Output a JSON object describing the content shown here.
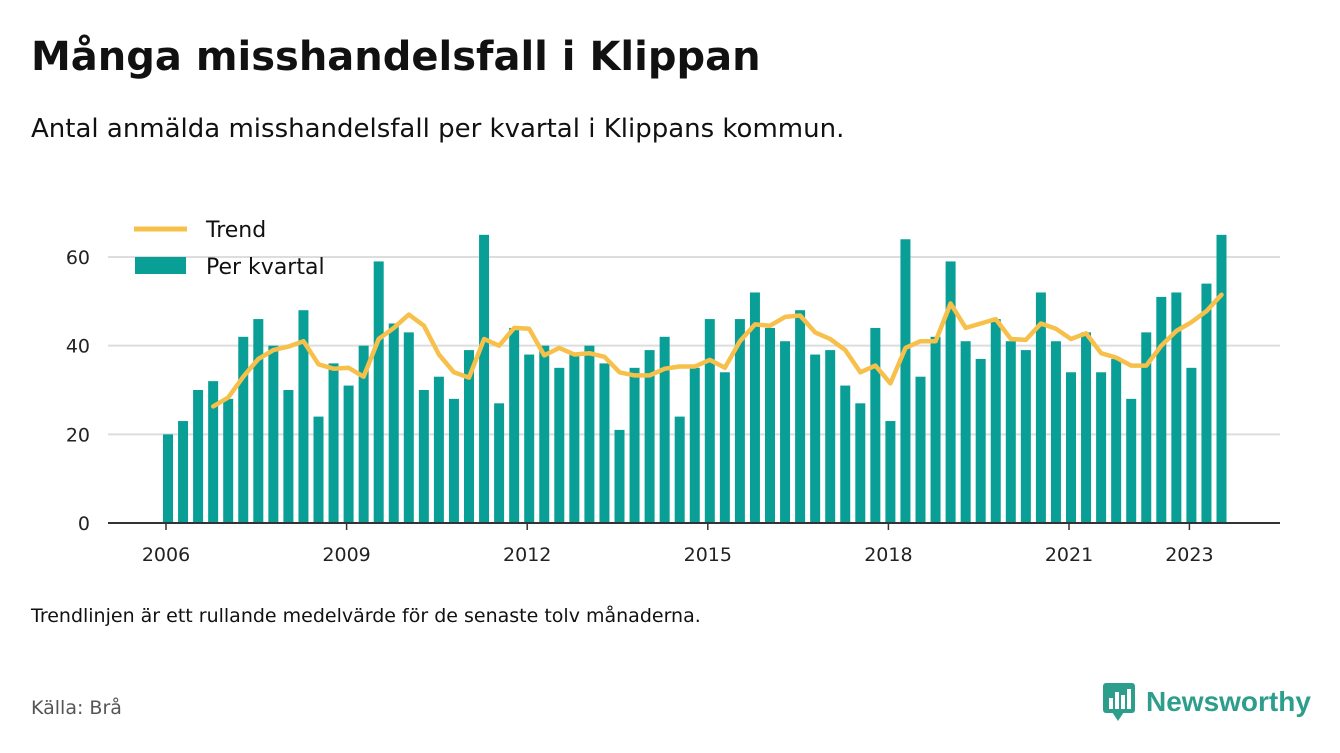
{
  "header": {
    "title": "Många misshandelsfall i Klippan",
    "subtitle": "Antal anmälda misshandelsfall per kvartal i Klippans kommun."
  },
  "footer": {
    "note": "Trendlinjen är ett rullande medelvärde för de senaste tolv månaderna.",
    "source": "Källa: Brå",
    "brand": "Newsworthy"
  },
  "chart_data": {
    "type": "bar",
    "title": "Många misshandelsfall i Klippan",
    "subtitle": "Antal anmälda misshandelsfall per kvartal i Klippans kommun.",
    "xlabel": "",
    "ylabel": "",
    "ylim": [
      0,
      70
    ],
    "y_ticks": [
      0,
      20,
      40,
      60
    ],
    "x_tick_labels": [
      "2006",
      "2009",
      "2012",
      "2015",
      "2018",
      "2021",
      "2023"
    ],
    "x_tick_years": [
      2006,
      2009,
      2012,
      2015,
      2018,
      2021,
      2023
    ],
    "grid": true,
    "legend_position": "top-left",
    "colors": {
      "bars": "#0a9f96",
      "trend": "#f7c04a",
      "grid": "#dddddd",
      "axis": "#333333"
    },
    "categories": [
      "2006 Q1",
      "2006 Q2",
      "2006 Q3",
      "2006 Q4",
      "2007 Q1",
      "2007 Q2",
      "2007 Q3",
      "2007 Q4",
      "2008 Q1",
      "2008 Q2",
      "2008 Q3",
      "2008 Q4",
      "2009 Q1",
      "2009 Q2",
      "2009 Q3",
      "2009 Q4",
      "2010 Q1",
      "2010 Q2",
      "2010 Q3",
      "2010 Q4",
      "2011 Q1",
      "2011 Q2",
      "2011 Q3",
      "2011 Q4",
      "2012 Q1",
      "2012 Q2",
      "2012 Q3",
      "2012 Q4",
      "2013 Q1",
      "2013 Q2",
      "2013 Q3",
      "2013 Q4",
      "2014 Q1",
      "2014 Q2",
      "2014 Q3",
      "2014 Q4",
      "2015 Q1",
      "2015 Q2",
      "2015 Q3",
      "2015 Q4",
      "2016 Q1",
      "2016 Q2",
      "2016 Q3",
      "2016 Q4",
      "2017 Q1",
      "2017 Q2",
      "2017 Q3",
      "2017 Q4",
      "2018 Q1",
      "2018 Q2",
      "2018 Q3",
      "2018 Q4",
      "2019 Q1",
      "2019 Q2",
      "2019 Q3",
      "2019 Q4",
      "2020 Q1",
      "2020 Q2",
      "2020 Q3",
      "2020 Q4",
      "2021 Q1",
      "2021 Q2",
      "2021 Q3",
      "2021 Q4",
      "2022 Q1",
      "2022 Q2",
      "2022 Q3",
      "2022 Q4",
      "2023 Q1",
      "2023 Q2",
      "2023 Q3"
    ],
    "series": [
      {
        "name": "Per kvartal",
        "type": "bar",
        "values": [
          20,
          23,
          30,
          32,
          28,
          42,
          46,
          40,
          30,
          48,
          24,
          36,
          31,
          40,
          59,
          45,
          43,
          30,
          33,
          28,
          39,
          65,
          27,
          44,
          38,
          40,
          35,
          38,
          40,
          36,
          21,
          35,
          39,
          42,
          24,
          35,
          46,
          34,
          46,
          52,
          44,
          41,
          48,
          38,
          39,
          31,
          27,
          44,
          23,
          64,
          33,
          42,
          59,
          41,
          37,
          46,
          41,
          39,
          52,
          41,
          34,
          43,
          34,
          37,
          28,
          43,
          51,
          52,
          35,
          54,
          65
        ]
      },
      {
        "name": "Trend",
        "type": "line",
        "values": [
          null,
          null,
          null,
          26.3,
          28.3,
          33,
          37,
          39,
          39.8,
          41,
          35.8,
          34.8,
          35,
          33,
          41.5,
          44,
          47,
          44.5,
          38,
          34,
          32.8,
          41.5,
          40,
          44,
          43.8,
          37.8,
          39.5,
          38,
          38.3,
          37.5,
          34,
          33.3,
          33.3,
          34.8,
          35.3,
          35.3,
          36.8,
          35,
          41,
          44.8,
          44.5,
          46.5,
          46.8,
          43,
          41.5,
          39,
          34,
          35.5,
          31.5,
          39.5,
          41,
          41,
          49.5,
          44,
          45,
          46,
          41.5,
          41.3,
          45,
          43.8,
          41.5,
          42.8,
          38.3,
          37.3,
          35.5,
          35.5,
          40,
          43.3,
          45.3,
          47.8,
          51.5
        ]
      }
    ]
  }
}
